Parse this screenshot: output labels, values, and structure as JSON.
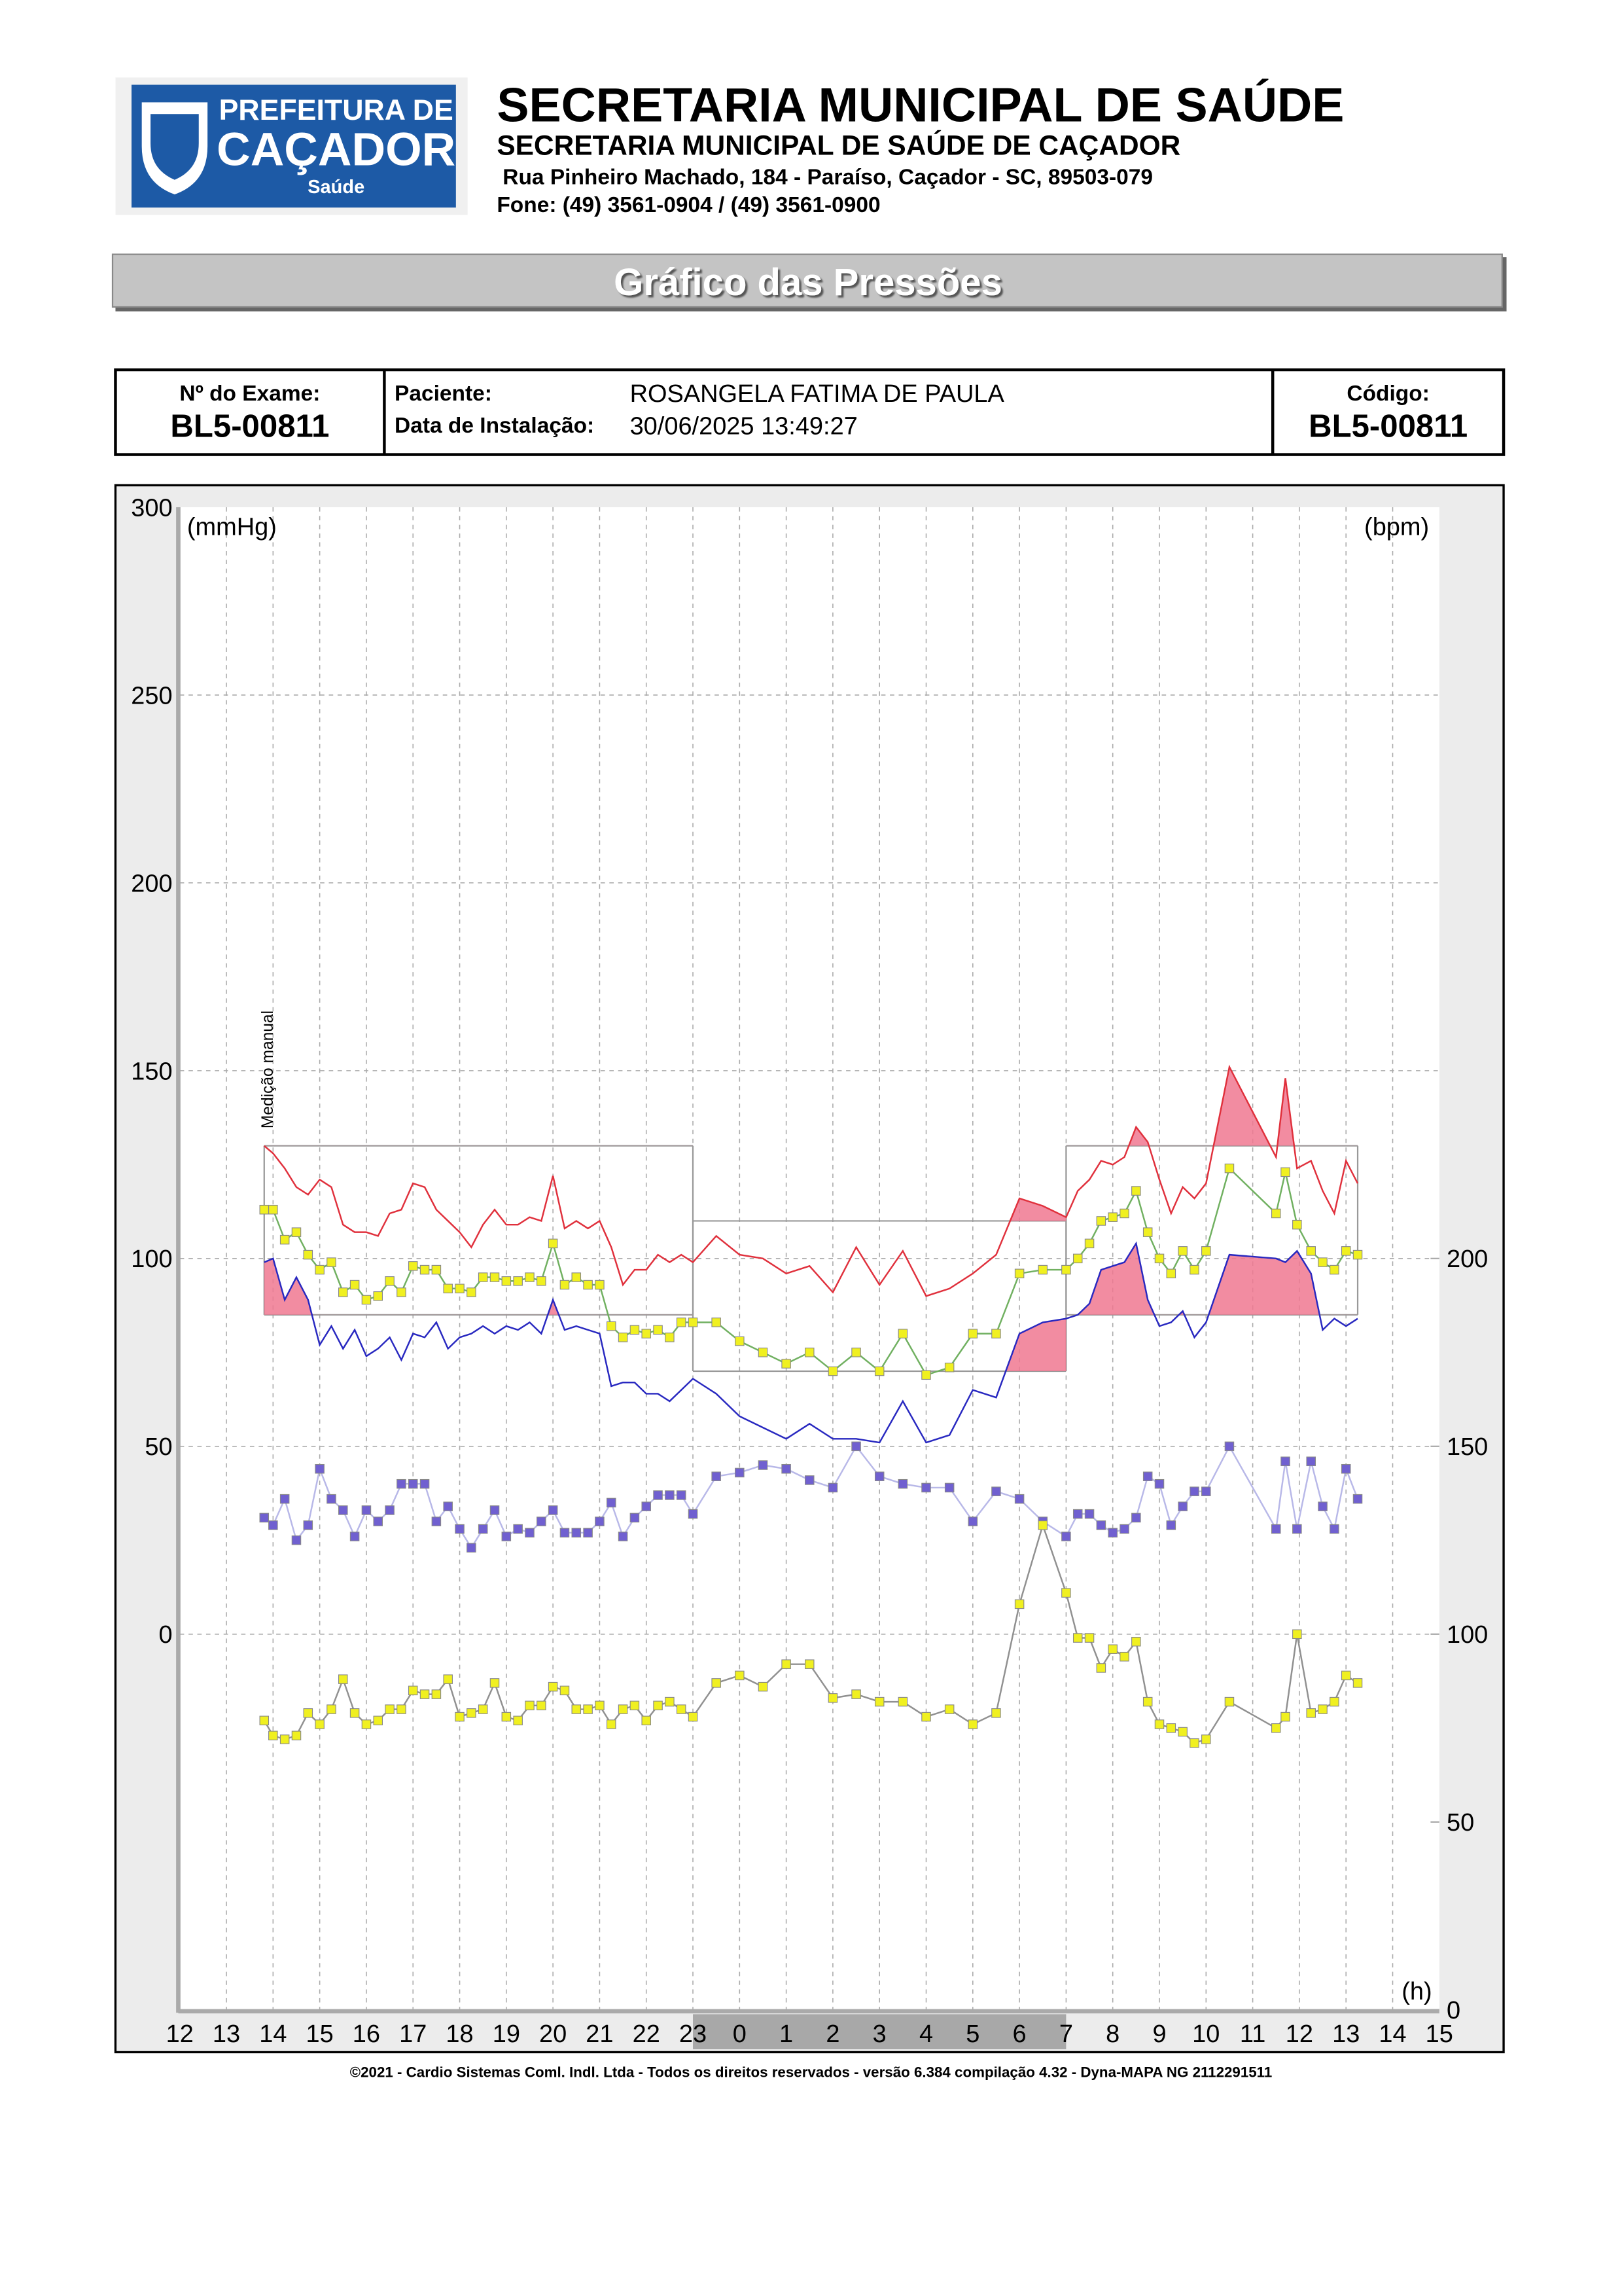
{
  "header": {
    "logo": {
      "line1": "PREFEITURA DE",
      "line2": "CAÇADOR",
      "line3": "Saúde"
    },
    "title": "SECRETARIA MUNICIPAL DE SAÚDE",
    "subtitle": "SECRETARIA MUNICIPAL DE SAÚDE DE CAÇADOR",
    "address": "Rua Pinheiro Machado, 184 - Paraíso, Caçador - SC, 89503-079",
    "phone": "Fone: (49) 3561-0904  / (49) 3561-0900"
  },
  "section_title": "Gráfico das Pressões",
  "exam": {
    "exam_label": "Nº do Exame:",
    "exam_number": "BL5-00811",
    "patient_label": "Paciente:",
    "patient_name": "ROSANGELA FATIMA DE PAULA",
    "date_label": "Data de Instalação:",
    "date": "30/06/2025 13:49:27",
    "code_label": "Código:",
    "code": "BL5-00811"
  },
  "chart_data": {
    "type": "line",
    "y_label": "(mmHg)",
    "y2_label": "(bpm)",
    "x_label": "(h)",
    "annotation": "Medição manual",
    "xlim": [
      12,
      39
    ],
    "xticks": [
      12,
      13,
      14,
      15,
      16,
      17,
      18,
      19,
      20,
      21,
      22,
      23,
      {
        "value": 24,
        "label": "0"
      },
      {
        "value": 25,
        "label": "1"
      },
      {
        "value": 26,
        "label": "2"
      },
      {
        "value": 27,
        "label": "3"
      },
      {
        "value": 28,
        "label": "4"
      },
      {
        "value": 29,
        "label": "5"
      },
      {
        "value": 30,
        "label": "6"
      },
      {
        "value": 31,
        "label": "7"
      },
      {
        "value": 32,
        "label": "8"
      },
      {
        "value": 33,
        "label": "9"
      },
      {
        "value": 34,
        "label": "10"
      },
      {
        "value": 35,
        "label": "11"
      },
      {
        "value": 36,
        "label": "12"
      },
      {
        "value": 37,
        "label": "13"
      },
      {
        "value": 38,
        "label": "14"
      },
      {
        "value": 39,
        "label": "15"
      }
    ],
    "ylim": [
      -100,
      300
    ],
    "yticks": [
      0,
      50,
      100,
      150,
      200,
      250,
      300
    ],
    "y2lim": [
      0,
      400
    ],
    "y2ticks": [
      0,
      50,
      100,
      150,
      200
    ],
    "grid": true,
    "sleep": [
      23,
      31
    ],
    "limits": [
      {
        "start": 13.81,
        "end": 23,
        "systolic": 130,
        "diastolic": 85
      },
      {
        "start": 23,
        "end": 31,
        "systolic": 110,
        "diastolic": 70
      },
      {
        "start": 31,
        "end": 37.25,
        "systolic": 130,
        "diastolic": 85
      }
    ],
    "x": [
      13.81,
      14,
      14.25,
      14.5,
      14.75,
      15,
      15.25,
      15.5,
      15.75,
      16,
      16.25,
      16.5,
      16.75,
      17,
      17.25,
      17.5,
      17.75,
      18,
      18.25,
      18.5,
      18.75,
      19,
      19.25,
      19.5,
      19.75,
      20,
      20.25,
      20.5,
      20.75,
      21,
      21.25,
      21.5,
      21.75,
      22,
      22.25,
      22.5,
      22.75,
      23,
      23.5,
      24,
      24.5,
      25,
      25.5,
      26,
      26.5,
      27,
      27.5,
      28,
      28.5,
      29,
      29.5,
      30,
      30.5,
      31,
      31.25,
      31.5,
      31.75,
      32,
      32.25,
      32.5,
      32.75,
      33,
      33.25,
      33.5,
      33.75,
      34,
      34.5,
      35.5,
      35.7,
      35.95,
      36.25,
      36.5,
      36.75,
      37,
      37.25
    ],
    "series": [
      {
        "color": "#e0303c",
        "fill_above": "systolic",
        "values": [
          130,
          128,
          124,
          119,
          117,
          121,
          119,
          109,
          107,
          107,
          106,
          112,
          113,
          120,
          119,
          113,
          110,
          107,
          103,
          109,
          113,
          109,
          109,
          111,
          110,
          122,
          108,
          110,
          108,
          110,
          103,
          93,
          97,
          97,
          101,
          99,
          101,
          99,
          106,
          101,
          100,
          96,
          98,
          91,
          103,
          93,
          102,
          90,
          92,
          96,
          101,
          116,
          114,
          111,
          118,
          121,
          126,
          125,
          127,
          135,
          131,
          121,
          112,
          119,
          116,
          120,
          151,
          127,
          148,
          124,
          126,
          118,
          112,
          126,
          120
        ]
      },
      {
        "color": "#2828c0",
        "fill_above": "diastolic",
        "values": [
          99,
          100,
          89,
          95,
          89,
          77,
          82,
          76,
          81,
          74,
          76,
          79,
          73,
          80,
          79,
          83,
          76,
          79,
          80,
          82,
          80,
          82,
          81,
          83,
          80,
          89,
          81,
          82,
          81,
          80,
          66,
          67,
          67,
          64,
          64,
          62,
          65,
          68,
          64,
          58,
          55,
          52,
          56,
          52,
          52,
          51,
          62,
          51,
          53,
          65,
          63,
          80,
          83,
          84,
          85,
          88,
          97,
          98,
          99,
          104,
          89,
          82,
          83,
          86,
          79,
          83,
          101,
          100,
          99,
          102,
          96,
          81,
          84,
          82,
          84
        ]
      },
      {
        "color": "#70b060",
        "marker_color": "#f0f020",
        "values": [
          113,
          113,
          105,
          107,
          101,
          97,
          99,
          91,
          93,
          89,
          90,
          94,
          91,
          98,
          97,
          97,
          92,
          92,
          91,
          95,
          95,
          94,
          94,
          95,
          94,
          104,
          93,
          95,
          93,
          93,
          82,
          79,
          81,
          80,
          81,
          79,
          83,
          83,
          83,
          78,
          75,
          72,
          75,
          70,
          75,
          70,
          80,
          69,
          71,
          80,
          80,
          96,
          97,
          97,
          100,
          104,
          110,
          111,
          112,
          118,
          107,
          100,
          96,
          102,
          97,
          102,
          124,
          112,
          123,
          109,
          102,
          99,
          97,
          102,
          101
        ]
      },
      {
        "color": "#b8b8e8",
        "marker_color": "#7060d0",
        "values": [
          31,
          29,
          36,
          25,
          29,
          44,
          36,
          33,
          26,
          33,
          30,
          33,
          40,
          40,
          40,
          30,
          34,
          28,
          23,
          28,
          33,
          26,
          28,
          27,
          30,
          33,
          27,
          27,
          27,
          30,
          35,
          26,
          31,
          34,
          37,
          37,
          37,
          32,
          42,
          43,
          45,
          44,
          41,
          39,
          50,
          42,
          40,
          39,
          39,
          30,
          38,
          36,
          30,
          26,
          32,
          32,
          29,
          27,
          28,
          31,
          42,
          40,
          29,
          34,
          38,
          38,
          50,
          28,
          46,
          28,
          46,
          34,
          28,
          44,
          36
        ]
      },
      {
        "color": "#909090",
        "marker_color": "#f0f020",
        "axis": "y2",
        "values": [
          77,
          73,
          72,
          73,
          79,
          76,
          80,
          88,
          79,
          76,
          77,
          80,
          80,
          85,
          84,
          84,
          88,
          78,
          79,
          80,
          87,
          78,
          77,
          81,
          81,
          86,
          85,
          80,
          80,
          81,
          76,
          80,
          81,
          77,
          81,
          82,
          80,
          78,
          87,
          89,
          86,
          92,
          92,
          83,
          84,
          82,
          82,
          78,
          80,
          76,
          79,
          108,
          129,
          111,
          99,
          99,
          91,
          96,
          94,
          98,
          82,
          76,
          75,
          74,
          71,
          72,
          82,
          75,
          78,
          100,
          79,
          80,
          82,
          89,
          87
        ]
      }
    ]
  },
  "footer": "©2021 - Cardio Sistemas Coml. Indl. Ltda - Todos os direitos reservados - versão 6.384 compilação 4.32 - Dyna-MAPA NG 2112291511"
}
